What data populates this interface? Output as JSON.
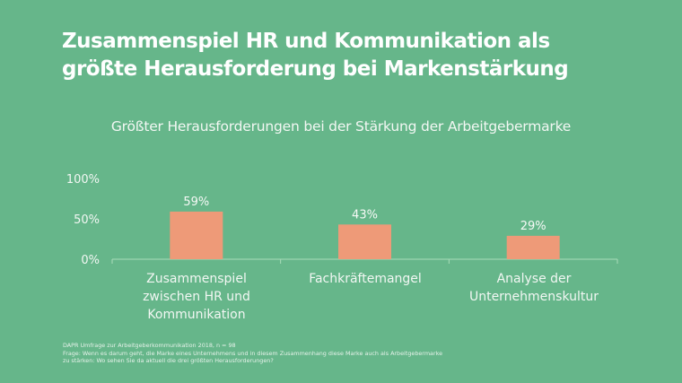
{
  "title_lines": [
    "Zusammenspiel HR und Kommunikation als",
    "größte Herausforderung bei Markenstärkung"
  ],
  "footnote": [
    "DAPR Umfrage zur Arbeitgeberkommunikation 2018, n = 98",
    "Frage: Wenn es darum geht, die Marke eines Unternehmens und in diesem Zusammenhang diese Marke auch als Arbeitgebermarke",
    "zu stärken: Wo sehen Sie da aktuell die drei größten Herausforderungen?"
  ],
  "colors": {
    "background": "#66b68a",
    "bar": "#ee9a78",
    "axis": "#a9dcb9"
  },
  "chart_data": {
    "type": "bar",
    "title": "Größter Herausforderungen bei der Stärkung der Arbeitgebermarke",
    "categories": [
      [
        "Zusammenspiel",
        "zwischen HR und",
        "Kommunikation"
      ],
      [
        "Fachkräftemangel"
      ],
      [
        "Analyse der",
        "Unternehmenskultur"
      ]
    ],
    "values": [
      59,
      43,
      29
    ],
    "data_labels": [
      "59%",
      "43%",
      "29%"
    ],
    "ylim": [
      0,
      100
    ],
    "yticks": [
      "0%",
      "50%",
      "100%"
    ],
    "grid": false,
    "legend": "none"
  }
}
